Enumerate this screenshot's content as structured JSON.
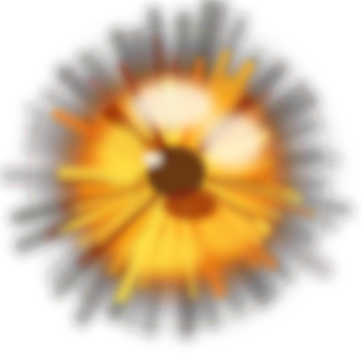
{
  "image": {
    "subject": "explosion-burst",
    "background_color": "#ffffff",
    "palette": {
      "smoke": "#2a2624",
      "deep_red": "#8a1e08",
      "orange": "#f07a10",
      "amber": "#ffb21c",
      "yellow": "#ffe34a",
      "white_hot": "#fffbe8",
      "core_brown": "#5a2a12"
    }
  }
}
